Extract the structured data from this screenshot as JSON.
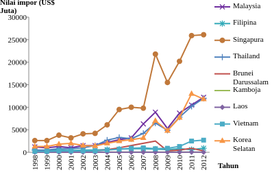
{
  "chart_data": {
    "type": "line",
    "y_label": "Nilai impor (US$ Juta)",
    "x_label": "Tahun",
    "categories": [
      "1998",
      "1999",
      "2000",
      "2001",
      "2002",
      "2003",
      "2004",
      "2005",
      "2006",
      "2007",
      "2008",
      "2009",
      "2010",
      "2011",
      "2012"
    ],
    "ylim": [
      0,
      30000
    ],
    "yticks": [
      0,
      5000,
      10000,
      15000,
      20000,
      25000,
      30000
    ],
    "grid": false,
    "legend": "right",
    "series": [
      {
        "name": "Malaysia",
        "color": "#7030a0",
        "marker": "x",
        "values": [
          1200,
          1000,
          1300,
          1000,
          1500,
          1500,
          2200,
          2800,
          3200,
          6300,
          8900,
          5300,
          8700,
          10500,
          12200
        ]
      },
      {
        "name": "Filipina",
        "color": "#31a9b8",
        "marker": "asterisk",
        "values": [
          500,
          400,
          500,
          400,
          500,
          500,
          600,
          700,
          800,
          800,
          700,
          600,
          800,
          600,
          900
        ]
      },
      {
        "name": "Singapura",
        "color": "#c0783a",
        "marker": "circle",
        "values": [
          2600,
          2600,
          3800,
          3200,
          4100,
          4200,
          6100,
          9500,
          10000,
          9800,
          21800,
          15500,
          20200,
          25900,
          26100
        ]
      },
      {
        "name": "Thailand",
        "color": "#4f81bd",
        "marker": "plus",
        "values": [
          500,
          500,
          800,
          800,
          1000,
          1500,
          2700,
          3300,
          3000,
          4200,
          6500,
          4900,
          7800,
          10200,
          12000
        ]
      },
      {
        "name": "Brunei Darussalam",
        "color": "#c0504d",
        "marker": "none",
        "values": [
          100,
          100,
          300,
          200,
          200,
          300,
          600,
          1000,
          1500,
          2000,
          2500,
          300,
          500,
          900,
          300
        ]
      },
      {
        "name": "Kamboja",
        "color": "#9bbb59",
        "marker": "none",
        "values": [
          20,
          20,
          20,
          20,
          20,
          20,
          30,
          30,
          30,
          30,
          30,
          30,
          40,
          40,
          40
        ]
      },
      {
        "name": "Laos",
        "color": "#8064a2",
        "marker": "diamond",
        "values": [
          10,
          10,
          10,
          10,
          10,
          10,
          20,
          20,
          20,
          20,
          20,
          20,
          20,
          30,
          20
        ]
      },
      {
        "name": "Vietnam",
        "color": "#4bacc6",
        "marker": "square",
        "values": [
          200,
          200,
          300,
          300,
          300,
          300,
          500,
          700,
          900,
          1000,
          800,
          900,
          1300,
          2500,
          2700
        ]
      },
      {
        "name": "Korea Selatan",
        "color": "#f79646",
        "marker": "triangle",
        "values": [
          1300,
          1300,
          1800,
          2000,
          1500,
          1400,
          2000,
          2500,
          2800,
          3200,
          7000,
          4800,
          7700,
          13000,
          11800
        ]
      }
    ]
  }
}
